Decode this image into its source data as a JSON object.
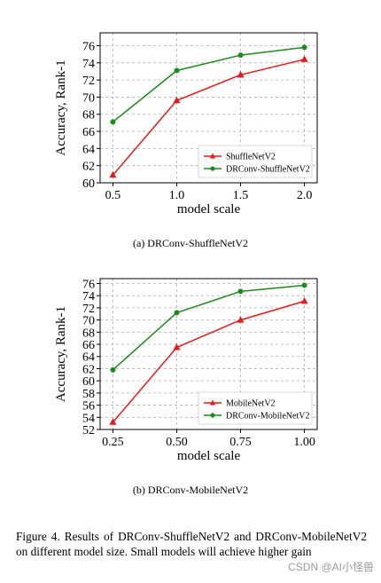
{
  "figure": {
    "caption": "Figure 4. Results of DRConv-ShuffleNetV2 and DRConv-MobileNetV2 on different model size. Small models will achieve higher gain",
    "watermark": "CSDN @AI小怪兽"
  },
  "colors": {
    "red": "#e41a1c",
    "green": "#1e8a1e",
    "grid": "#b0b0b0"
  },
  "chart_data": [
    {
      "type": "line",
      "subcaption": "(a)  DRConv-ShuffleNetV2",
      "xlabel": "model scale",
      "ylabel": "Accuracy, Rank-1",
      "categories": [
        "0.5",
        "1.0",
        "1.5",
        "2.0"
      ],
      "x": [
        0.5,
        1.0,
        1.5,
        2.0
      ],
      "xlim": [
        0.4,
        2.1
      ],
      "ylim": [
        60,
        77.5
      ],
      "yticks": [
        60,
        62,
        64,
        66,
        68,
        70,
        72,
        74,
        76
      ],
      "grid": true,
      "legend_position": "lower-right",
      "series": [
        {
          "name": "ShuffleNetV2",
          "color": "#e41a1c",
          "marker": "triangle",
          "values": [
            60.9,
            69.6,
            72.6,
            74.4
          ]
        },
        {
          "name": "DRConv-ShuffleNetV2",
          "color": "#1e8a1e",
          "marker": "circle",
          "values": [
            67.1,
            73.1,
            74.9,
            75.8
          ]
        }
      ]
    },
    {
      "type": "line",
      "subcaption": "(b)  DRConv-MobileNetV2",
      "xlabel": "model scale",
      "ylabel": "Accuracy, Rank-1",
      "categories": [
        "0.25",
        "0.50",
        "0.75",
        "1.00"
      ],
      "x": [
        0.25,
        0.5,
        0.75,
        1.0
      ],
      "xlim": [
        0.2,
        1.05
      ],
      "ylim": [
        52,
        76.8
      ],
      "yticks": [
        52,
        54,
        56,
        58,
        60,
        62,
        64,
        66,
        68,
        70,
        72,
        74,
        76
      ],
      "grid": true,
      "legend_position": "lower-right",
      "series": [
        {
          "name": "MobileNetV2",
          "color": "#e41a1c",
          "marker": "triangle",
          "values": [
            53.2,
            65.5,
            70.0,
            73.1
          ]
        },
        {
          "name": "DRConv-MobileNetV2",
          "color": "#1e8a1e",
          "marker": "circle",
          "values": [
            61.8,
            71.2,
            74.7,
            75.7
          ]
        }
      ]
    }
  ]
}
